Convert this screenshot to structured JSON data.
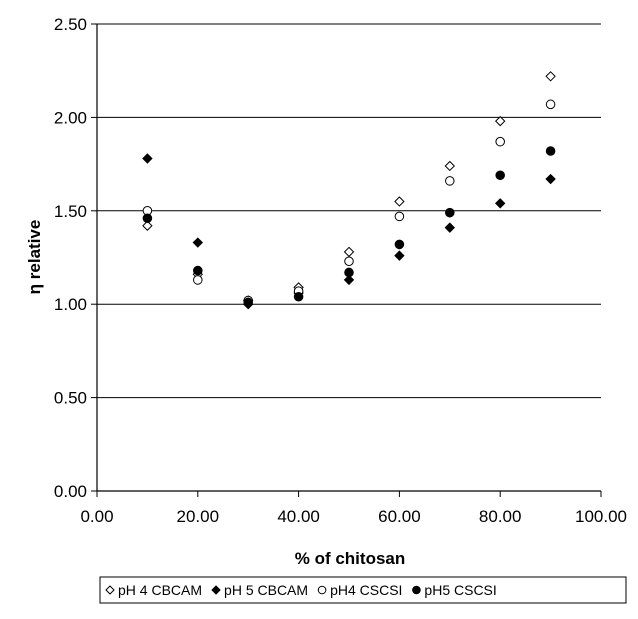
{
  "chart_data": {
    "type": "scatter",
    "xlabel": "% of chitosan",
    "ylabel": "η relative",
    "xlim": [
      0,
      100
    ],
    "ylim": [
      0,
      2.5
    ],
    "x_ticks": [
      "0.00",
      "20.00",
      "40.00",
      "60.00",
      "80.00",
      "100.00"
    ],
    "y_ticks": [
      "0.00",
      "0.50",
      "1.00",
      "1.50",
      "2.00",
      "2.50"
    ],
    "grid": "horizontal",
    "legend_position": "bottom",
    "x": [
      10,
      20,
      30,
      40,
      50,
      60,
      70,
      80,
      90
    ],
    "series": [
      {
        "name": "pH 4 CBCAM",
        "marker": "diamond-open",
        "color": "#000000",
        "values": [
          1.42,
          1.16,
          1.02,
          1.09,
          1.28,
          1.55,
          1.74,
          1.98,
          2.22
        ]
      },
      {
        "name": "pH 5 CBCAM",
        "marker": "diamond-filled",
        "color": "#000000",
        "values": [
          1.78,
          1.33,
          1.0,
          1.06,
          1.13,
          1.26,
          1.41,
          1.54,
          1.67
        ]
      },
      {
        "name": "pH4 CSCSI",
        "marker": "circle-open",
        "color": "#000000",
        "values": [
          1.5,
          1.13,
          1.02,
          1.07,
          1.23,
          1.47,
          1.66,
          1.87,
          2.07
        ]
      },
      {
        "name": "pH5 CSCSI",
        "marker": "circle-filled",
        "color": "#000000",
        "values": [
          1.46,
          1.18,
          1.01,
          1.04,
          1.17,
          1.32,
          1.49,
          1.69,
          1.82
        ]
      }
    ]
  }
}
